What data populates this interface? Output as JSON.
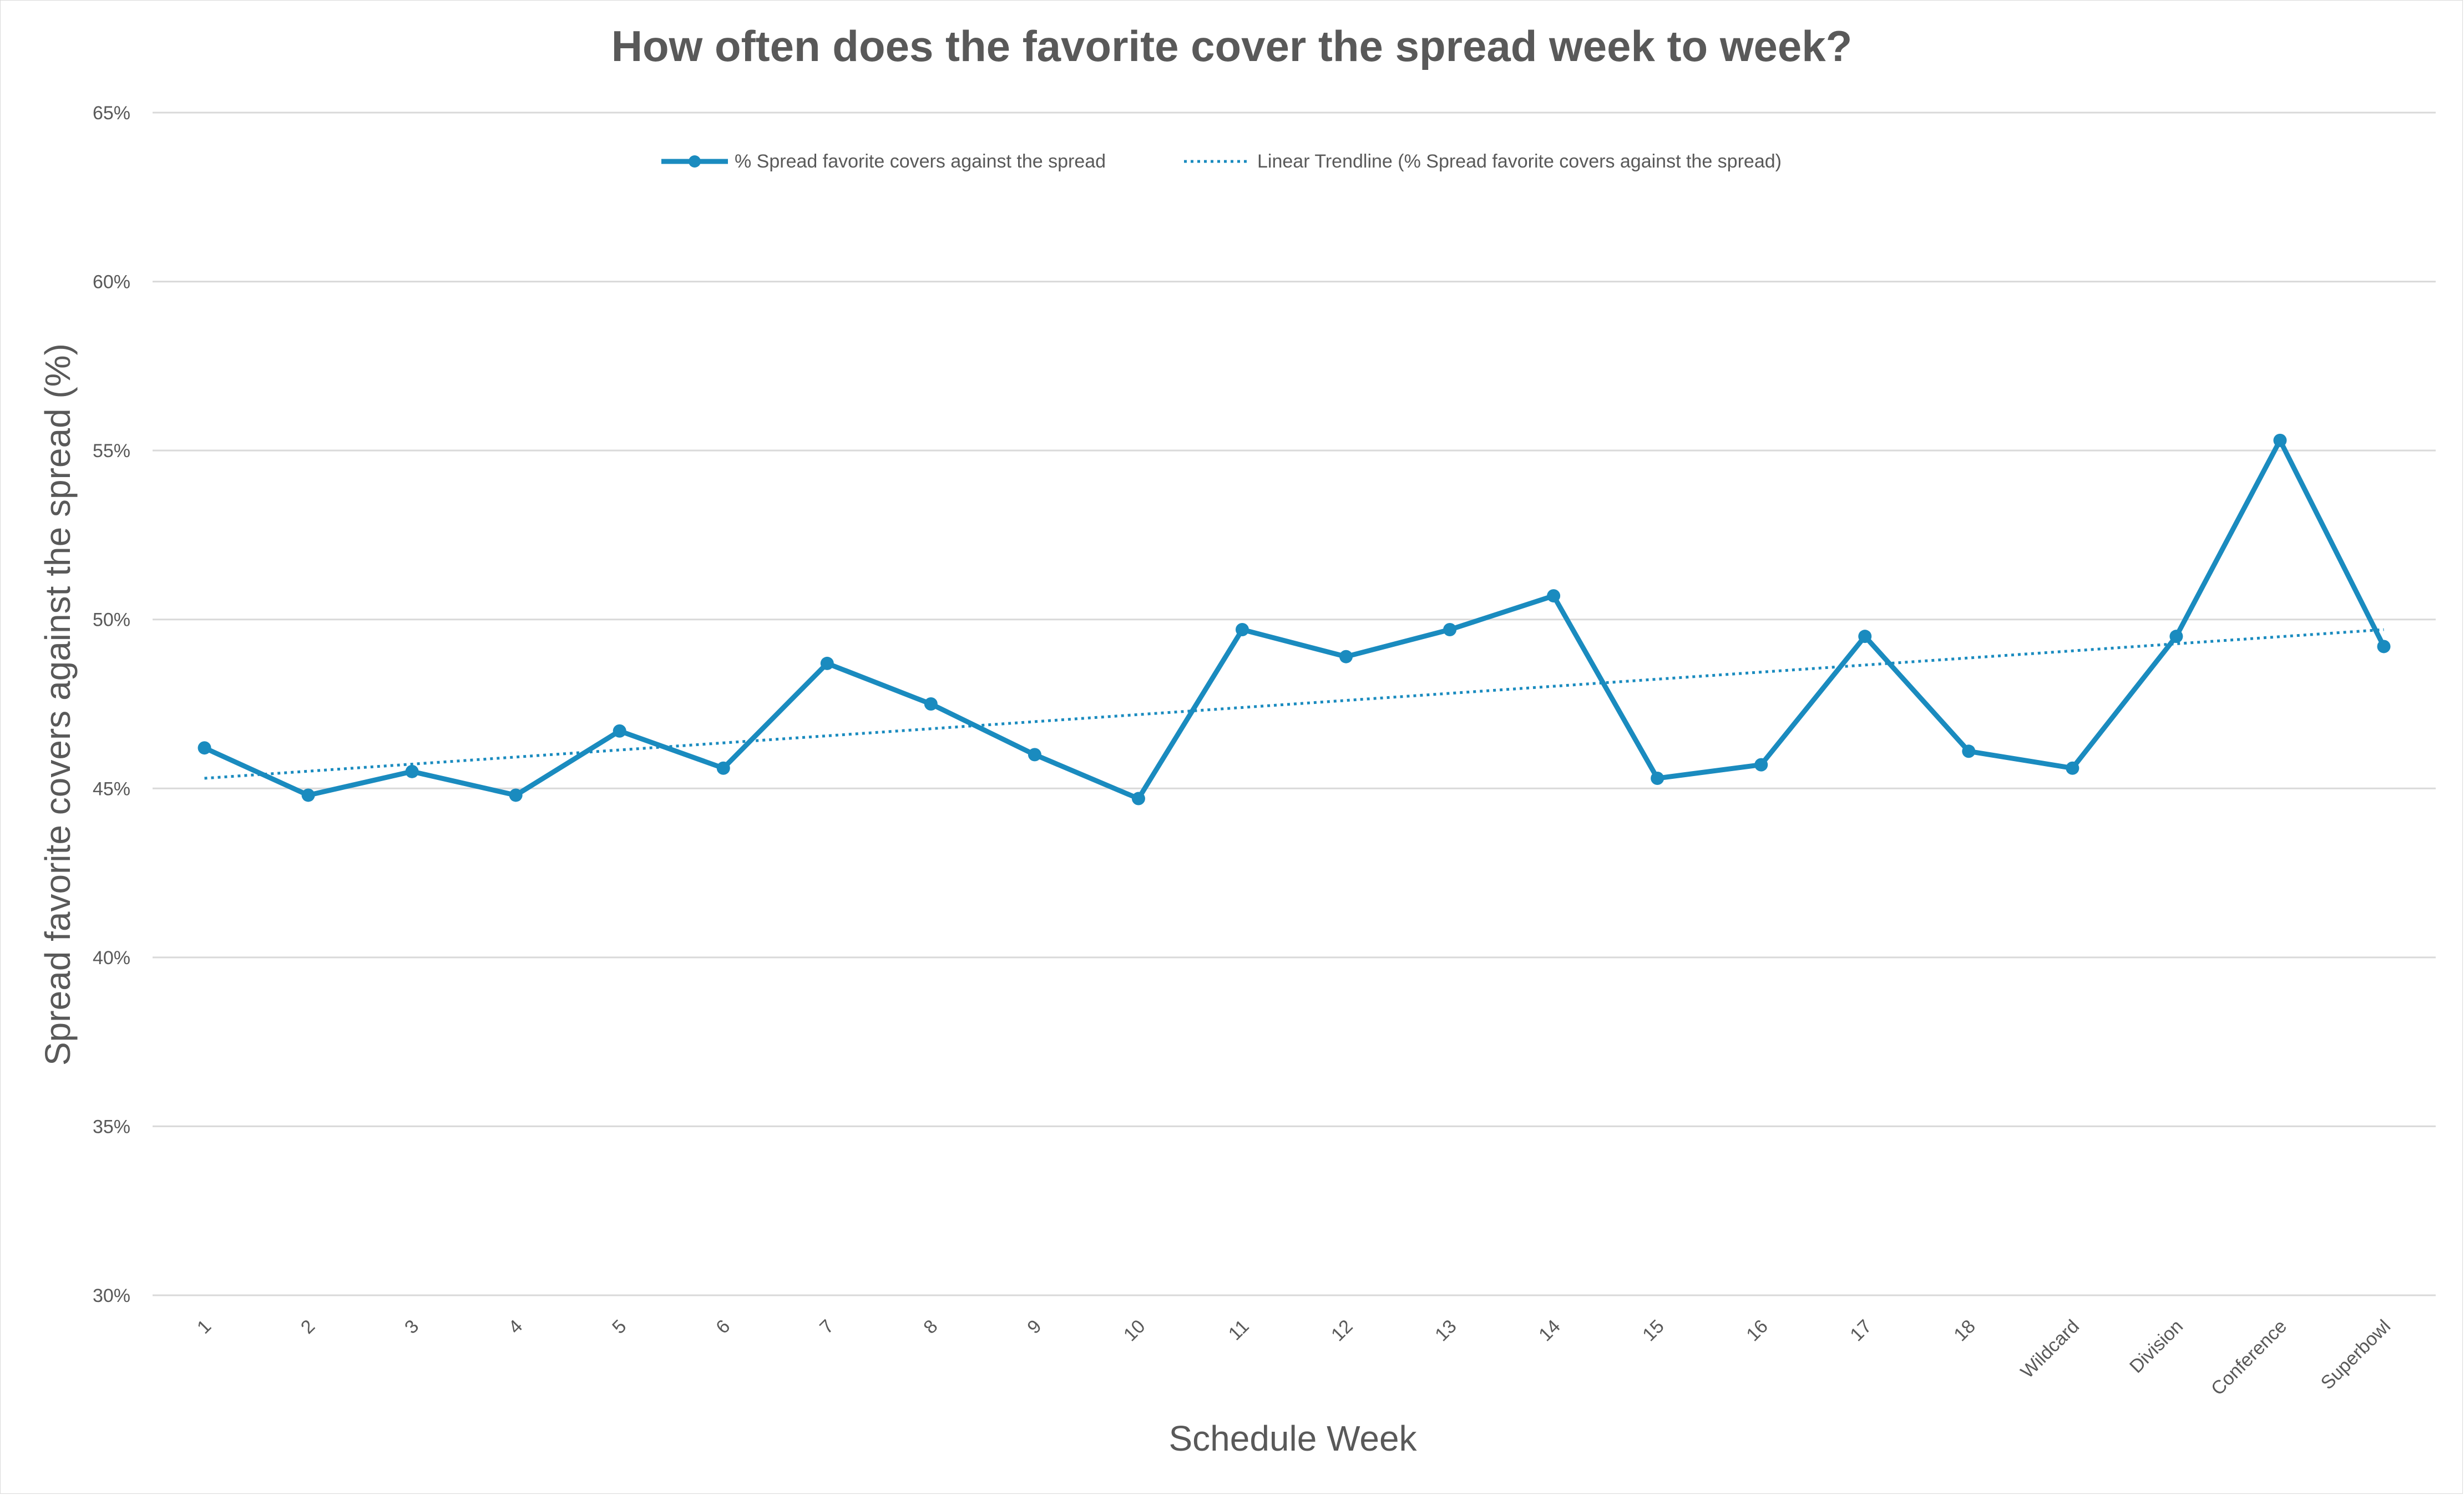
{
  "chart_data": {
    "type": "line",
    "title": "How often does the favorite cover the spread week to week?",
    "xlabel": "Schedule Week",
    "ylabel": "Spread favorite covers against the spread (%)",
    "categories": [
      "1",
      "2",
      "3",
      "4",
      "5",
      "6",
      "7",
      "8",
      "9",
      "10",
      "11",
      "12",
      "13",
      "14",
      "15",
      "16",
      "17",
      "18",
      "Wildcard",
      "Division",
      "Conference",
      "Superbowl"
    ],
    "series": [
      {
        "name": "% Spread favorite covers against the spread",
        "values": [
          46.2,
          44.8,
          45.5,
          44.8,
          46.7,
          45.6,
          48.7,
          47.5,
          46.0,
          44.7,
          49.7,
          48.9,
          49.7,
          50.7,
          45.3,
          45.7,
          49.5,
          46.1,
          45.6,
          49.5,
          55.3,
          49.2
        ],
        "color": "#1a8bbf",
        "marker": "circle"
      }
    ],
    "trendline": {
      "name": "Linear Trendline (% Spread favorite covers against the spread)",
      "type": "linear",
      "start": 45.3,
      "end": 49.7,
      "style": "dotted",
      "color": "#1a8bbf"
    },
    "ylim": [
      30,
      65
    ],
    "yticks": [
      30,
      35,
      40,
      45,
      50,
      55,
      60,
      65
    ],
    "ytick_labels": [
      "30%",
      "35%",
      "40%",
      "45%",
      "50%",
      "55%",
      "60%",
      "65%"
    ],
    "grid": true,
    "legend_position": "top-center"
  }
}
